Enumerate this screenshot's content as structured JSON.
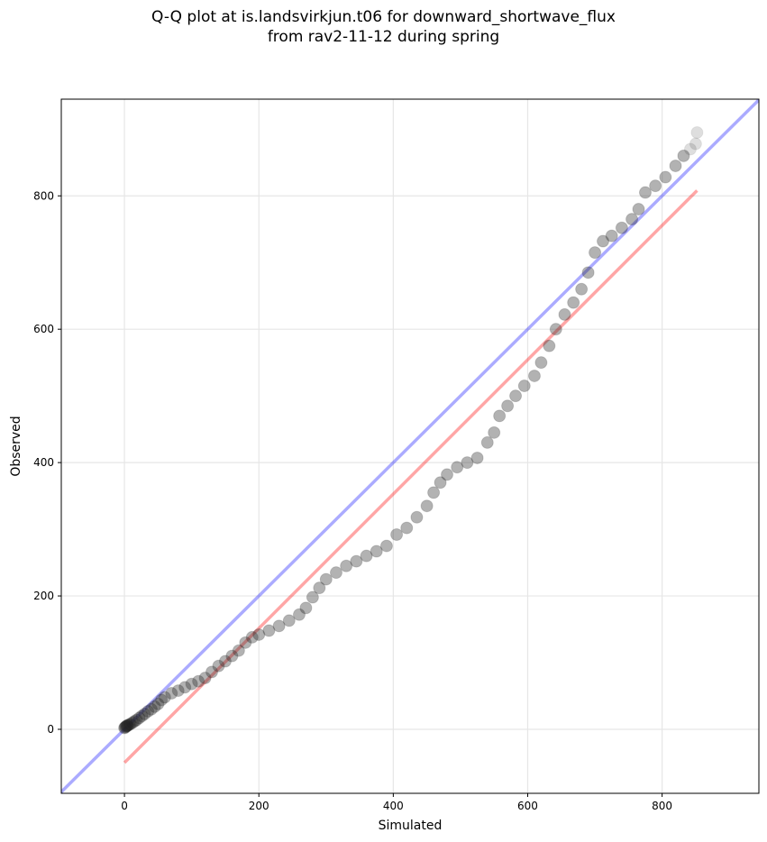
{
  "chart_data": {
    "type": "scatter",
    "title_line1": "Q-Q plot at is.landsvirkjun.t06 for downward_shortwave_flux",
    "title_line2": "from rav2-11-12 during spring",
    "xlabel": "Simulated",
    "ylabel": "Observed",
    "xlim": [
      -94,
      944
    ],
    "ylim": [
      -96,
      945
    ],
    "xticks": [
      0,
      200,
      400,
      600,
      800
    ],
    "yticks": [
      0,
      200,
      400,
      600,
      800
    ],
    "grid": true,
    "reference_line": {
      "name": "1:1 line",
      "color": "#0000ff",
      "slope": 1,
      "intercept": 0
    },
    "fit_line": {
      "name": "fit",
      "color": "#ff0000",
      "x": [
        0,
        852
      ],
      "y": [
        -50,
        808
      ]
    },
    "points": [
      [
        0,
        2
      ],
      [
        1,
        3
      ],
      [
        2,
        4
      ],
      [
        3,
        5
      ],
      [
        4,
        5
      ],
      [
        5,
        6
      ],
      [
        7,
        7
      ],
      [
        9,
        8
      ],
      [
        12,
        10
      ],
      [
        15,
        12
      ],
      [
        18,
        14
      ],
      [
        22,
        17
      ],
      [
        26,
        20
      ],
      [
        30,
        23
      ],
      [
        35,
        27
      ],
      [
        40,
        30
      ],
      [
        45,
        34
      ],
      [
        50,
        38
      ],
      [
        55,
        44
      ],
      [
        60,
        48
      ],
      [
        70,
        54
      ],
      [
        80,
        58
      ],
      [
        90,
        63
      ],
      [
        100,
        68
      ],
      [
        110,
        72
      ],
      [
        120,
        77
      ],
      [
        130,
        86
      ],
      [
        140,
        95
      ],
      [
        150,
        102
      ],
      [
        160,
        110
      ],
      [
        170,
        118
      ],
      [
        180,
        130
      ],
      [
        190,
        138
      ],
      [
        200,
        142
      ],
      [
        215,
        148
      ],
      [
        230,
        155
      ],
      [
        245,
        163
      ],
      [
        260,
        172
      ],
      [
        270,
        182
      ],
      [
        280,
        198
      ],
      [
        290,
        212
      ],
      [
        300,
        225
      ],
      [
        315,
        235
      ],
      [
        330,
        245
      ],
      [
        345,
        252
      ],
      [
        360,
        260
      ],
      [
        375,
        267
      ],
      [
        390,
        275
      ],
      [
        405,
        292
      ],
      [
        420,
        302
      ],
      [
        435,
        318
      ],
      [
        450,
        335
      ],
      [
        460,
        355
      ],
      [
        470,
        370
      ],
      [
        480,
        382
      ],
      [
        495,
        393
      ],
      [
        510,
        400
      ],
      [
        525,
        407
      ],
      [
        540,
        430
      ],
      [
        550,
        445
      ],
      [
        558,
        470
      ],
      [
        570,
        485
      ],
      [
        582,
        500
      ],
      [
        595,
        515
      ],
      [
        610,
        530
      ],
      [
        620,
        550
      ],
      [
        632,
        575
      ],
      [
        642,
        600
      ],
      [
        655,
        622
      ],
      [
        668,
        640
      ],
      [
        680,
        660
      ],
      [
        690,
        685
      ],
      [
        700,
        715
      ],
      [
        712,
        732
      ],
      [
        725,
        740
      ],
      [
        740,
        752
      ],
      [
        755,
        765
      ],
      [
        765,
        780
      ],
      [
        775,
        805
      ],
      [
        790,
        815
      ],
      [
        805,
        828
      ],
      [
        820,
        845
      ],
      [
        832,
        860
      ],
      [
        842,
        870
      ],
      [
        850,
        878
      ],
      [
        852,
        895
      ]
    ]
  }
}
